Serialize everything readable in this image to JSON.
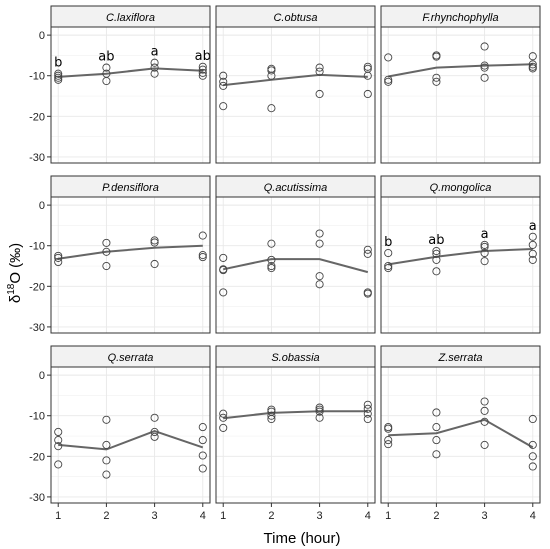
{
  "chart_data": {
    "type": "scatter",
    "x_label": "Time (hour)",
    "y_label": "δ18O (‰)",
    "x_ticks": [
      1,
      2,
      3,
      4
    ],
    "y_ticks": [
      0,
      -10,
      -20,
      -30
    ],
    "ylim": [
      -31.5,
      2
    ],
    "xlim": [
      0.85,
      4.15
    ],
    "grid": true,
    "layout": "3x3 facets",
    "colors": {
      "points": "#444444",
      "line": "#666666",
      "strip_bg": "#f2f2f2",
      "grid": "#e8e8e8"
    },
    "panels": [
      {
        "species": "C.laxiflora",
        "line": [
          {
            "x": 1,
            "y": -10.3
          },
          {
            "x": 2,
            "y": -9.5
          },
          {
            "x": 3,
            "y": -8.2
          },
          {
            "x": 4,
            "y": -8.8
          }
        ],
        "points": [
          [
            1,
            -9.5
          ],
          [
            1,
            -10
          ],
          [
            1,
            -10.5
          ],
          [
            1,
            -11
          ],
          [
            2,
            -8
          ],
          [
            2,
            -9.5
          ],
          [
            2,
            -11.3
          ],
          [
            3,
            -6.8
          ],
          [
            3,
            -8
          ],
          [
            3,
            -9.5
          ],
          [
            4,
            -7.8
          ],
          [
            4,
            -8.5
          ],
          [
            4,
            -9.3
          ],
          [
            4,
            -10
          ]
        ],
        "labels": [
          "b",
          "ab",
          "a",
          "ab"
        ]
      },
      {
        "species": "C.obtusa",
        "line": [
          {
            "x": 1,
            "y": -12.3
          },
          {
            "x": 2,
            "y": -11
          },
          {
            "x": 3,
            "y": -9.8
          },
          {
            "x": 4,
            "y": -10.3
          }
        ],
        "points": [
          [
            1,
            -10
          ],
          [
            1,
            -11.5
          ],
          [
            1,
            -12.5
          ],
          [
            1,
            -17.5
          ],
          [
            2,
            -8.3
          ],
          [
            2,
            -8.7
          ],
          [
            2,
            -10
          ],
          [
            2,
            -18
          ],
          [
            3,
            -8
          ],
          [
            3,
            -9
          ],
          [
            3,
            -14.5
          ],
          [
            4,
            -7.8
          ],
          [
            4,
            -8.3
          ],
          [
            4,
            -10
          ],
          [
            4,
            -14.5
          ]
        ],
        "labels": []
      },
      {
        "species": "F.rhynchophylla",
        "line": [
          {
            "x": 1,
            "y": -10.2
          },
          {
            "x": 2,
            "y": -8
          },
          {
            "x": 3,
            "y": -7.5
          },
          {
            "x": 4,
            "y": -7.2
          }
        ],
        "points": [
          [
            1,
            -5.5
          ],
          [
            1,
            -11
          ],
          [
            1,
            -11.5
          ],
          [
            2,
            -5
          ],
          [
            2,
            -5.3
          ],
          [
            2,
            -10.5
          ],
          [
            2,
            -11.5
          ],
          [
            3,
            -2.8
          ],
          [
            3,
            -7.5
          ],
          [
            3,
            -8
          ],
          [
            3,
            -10.5
          ],
          [
            4,
            -5.2
          ],
          [
            4,
            -7.2
          ],
          [
            4,
            -7.8
          ],
          [
            4,
            -8.2
          ]
        ],
        "labels": []
      },
      {
        "species": "P.densiflora",
        "line": [
          {
            "x": 1,
            "y": -13.2
          },
          {
            "x": 2,
            "y": -11.5
          },
          {
            "x": 3,
            "y": -10.5
          },
          {
            "x": 4,
            "y": -10
          }
        ],
        "points": [
          [
            1,
            -12.5
          ],
          [
            1,
            -13
          ],
          [
            1,
            -14
          ],
          [
            2,
            -9.3
          ],
          [
            2,
            -11.5
          ],
          [
            2,
            -15
          ],
          [
            3,
            -8.7
          ],
          [
            3,
            -9.2
          ],
          [
            3,
            -14.5
          ],
          [
            4,
            -7.5
          ],
          [
            4,
            -12.3
          ],
          [
            4,
            -12.8
          ]
        ],
        "labels": []
      },
      {
        "species": "Q.acutissima",
        "line": [
          {
            "x": 1,
            "y": -15.8
          },
          {
            "x": 2,
            "y": -13.3
          },
          {
            "x": 3,
            "y": -13.3
          },
          {
            "x": 4,
            "y": -16.5
          }
        ],
        "points": [
          [
            1,
            -13
          ],
          [
            1,
            -15.8
          ],
          [
            1,
            -16
          ],
          [
            1,
            -21.5
          ],
          [
            2,
            -9.5
          ],
          [
            2,
            -13.5
          ],
          [
            2,
            -15
          ],
          [
            2,
            -15.5
          ],
          [
            3,
            -7
          ],
          [
            3,
            -9.5
          ],
          [
            3,
            -17.5
          ],
          [
            3,
            -19.5
          ],
          [
            4,
            -11
          ],
          [
            4,
            -12
          ],
          [
            4,
            -21.5
          ],
          [
            4,
            -21.8
          ]
        ],
        "labels": []
      },
      {
        "species": "Q.mongolica",
        "line": [
          {
            "x": 1,
            "y": -14.6
          },
          {
            "x": 2,
            "y": -12.7
          },
          {
            "x": 3,
            "y": -11.3
          },
          {
            "x": 4,
            "y": -10.8
          }
        ],
        "points": [
          [
            1,
            -11.8
          ],
          [
            1,
            -15
          ],
          [
            1,
            -15.5
          ],
          [
            2,
            -11.3
          ],
          [
            2,
            -12
          ],
          [
            2,
            -13.5
          ],
          [
            2,
            -16.3
          ],
          [
            3,
            -9.8
          ],
          [
            3,
            -10.3
          ],
          [
            3,
            -11.8
          ],
          [
            3,
            -13.8
          ],
          [
            4,
            -7.8
          ],
          [
            4,
            -9.8
          ],
          [
            4,
            -12
          ],
          [
            4,
            -13.5
          ]
        ],
        "labels": [
          "b",
          "ab",
          "a",
          "a"
        ]
      },
      {
        "species": "Q.serrata",
        "line": [
          {
            "x": 1,
            "y": -17.2
          },
          {
            "x": 2,
            "y": -18.3
          },
          {
            "x": 3,
            "y": -13.8
          },
          {
            "x": 4,
            "y": -17.8
          }
        ],
        "points": [
          [
            1,
            -14
          ],
          [
            1,
            -16
          ],
          [
            1,
            -17.5
          ],
          [
            1,
            -22
          ],
          [
            2,
            -11
          ],
          [
            2,
            -17.2
          ],
          [
            2,
            -21
          ],
          [
            2,
            -24.5
          ],
          [
            3,
            -10.5
          ],
          [
            3,
            -14
          ],
          [
            3,
            -15.2
          ],
          [
            4,
            -12.8
          ],
          [
            4,
            -16
          ],
          [
            4,
            -19.8
          ],
          [
            4,
            -23
          ]
        ],
        "labels": []
      },
      {
        "species": "S.obassia",
        "line": [
          {
            "x": 1,
            "y": -10.6
          },
          {
            "x": 2,
            "y": -9.3
          },
          {
            "x": 3,
            "y": -8.9
          },
          {
            "x": 4,
            "y": -8.9
          }
        ],
        "points": [
          [
            1,
            -9.5
          ],
          [
            1,
            -10.5
          ],
          [
            1,
            -13
          ],
          [
            2,
            -8.5
          ],
          [
            2,
            -9
          ],
          [
            2,
            -10
          ],
          [
            2,
            -10.8
          ],
          [
            3,
            -8
          ],
          [
            3,
            -8.5
          ],
          [
            3,
            -9
          ],
          [
            3,
            -10.5
          ],
          [
            4,
            -7.3
          ],
          [
            4,
            -8.3
          ],
          [
            4,
            -9.5
          ],
          [
            4,
            -10.8
          ]
        ],
        "labels": []
      },
      {
        "species": "Z.serrata",
        "line": [
          {
            "x": 1,
            "y": -14.8
          },
          {
            "x": 2,
            "y": -14.3
          },
          {
            "x": 3,
            "y": -11
          },
          {
            "x": 4,
            "y": -17.8
          }
        ],
        "points": [
          [
            1,
            -12.8
          ],
          [
            1,
            -13.2
          ],
          [
            1,
            -16
          ],
          [
            1,
            -17
          ],
          [
            2,
            -9.2
          ],
          [
            2,
            -12.8
          ],
          [
            2,
            -16
          ],
          [
            2,
            -19.5
          ],
          [
            3,
            -6.5
          ],
          [
            3,
            -8.8
          ],
          [
            3,
            -11.5
          ],
          [
            3,
            -17.2
          ],
          [
            4,
            -10.8
          ],
          [
            4,
            -17.2
          ],
          [
            4,
            -20
          ],
          [
            4,
            -22.5
          ]
        ],
        "labels": []
      }
    ]
  }
}
